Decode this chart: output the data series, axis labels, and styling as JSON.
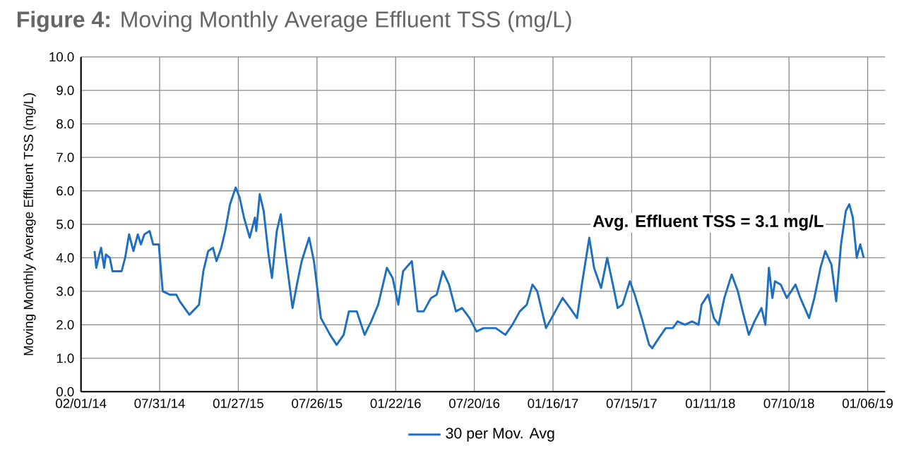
{
  "chart_data": {
    "type": "line",
    "title": "**Figure 4:** Moving Monthly Average Effluent TSS (mg/L)",
    "ylabel": "Moving Monthly Average Effluent TSS (mg/L)",
    "annotations": [
      "Avg. Effluent TSS = 3.1 mg/L"
    ],
    "xlim": [
      "2014-02-01",
      "2019-02-15"
    ],
    "ylim": [
      0,
      10
    ],
    "xticks": [
      {
        "value": "2014-02-01",
        "label": "02/01/14"
      },
      {
        "value": "2014-07-31",
        "label": "07/31/14"
      },
      {
        "value": "2015-01-27",
        "label": "01/27/15"
      },
      {
        "value": "2015-07-26",
        "label": "07/26/15"
      },
      {
        "value": "2016-01-22",
        "label": "01/22/16"
      },
      {
        "value": "2016-07-20",
        "label": "07/20/16"
      },
      {
        "value": "2017-01-16",
        "label": "01/16/17"
      },
      {
        "value": "2017-07-15",
        "label": "07/15/17"
      },
      {
        "value": "2018-01-11",
        "label": "01/11/18"
      },
      {
        "value": "2018-07-10",
        "label": "07/10/18"
      },
      {
        "value": "2019-01-06",
        "label": "01/06/19"
      }
    ],
    "yticks": [
      {
        "value": 0,
        "label": "0.0"
      },
      {
        "value": 1,
        "label": "1.0"
      },
      {
        "value": 2,
        "label": "2.0"
      },
      {
        "value": 3,
        "label": "3.0"
      },
      {
        "value": 4,
        "label": "4.0"
      },
      {
        "value": 5,
        "label": "5.0"
      },
      {
        "value": 6,
        "label": "6.0"
      },
      {
        "value": 7,
        "label": "7.0"
      },
      {
        "value": 8,
        "label": "8.0"
      },
      {
        "value": 9,
        "label": "9.0"
      },
      {
        "value": 10,
        "label": "10.0"
      }
    ],
    "grid": true,
    "legend": "bottom",
    "x": [
      "2014-03-04",
      "2014-03-08",
      "2014-03-15",
      "2014-03-19",
      "2014-03-26",
      "2014-03-30",
      "2014-04-08",
      "2014-04-14",
      "2014-04-24",
      "2014-05-05",
      "2014-05-13",
      "2014-05-22",
      "2014-06-01",
      "2014-06-11",
      "2014-06-18",
      "2014-06-26",
      "2014-07-08",
      "2014-07-16",
      "2014-07-29",
      "2014-08-07",
      "2014-08-23",
      "2014-09-07",
      "2014-09-15",
      "2014-10-07",
      "2014-10-29",
      "2014-11-08",
      "2014-11-19",
      "2014-11-30",
      "2014-12-08",
      "2014-12-19",
      "2014-12-28",
      "2015-01-08",
      "2015-01-21",
      "2015-01-30",
      "2015-02-09",
      "2015-02-22",
      "2015-03-06",
      "2015-03-09",
      "2015-03-17",
      "2015-03-26",
      "2015-04-06",
      "2015-04-14",
      "2015-04-25",
      "2015-05-04",
      "2015-05-14",
      "2015-05-31",
      "2015-06-10",
      "2015-06-21",
      "2015-07-08",
      "2015-07-19",
      "2015-08-04",
      "2015-08-25",
      "2015-09-09",
      "2015-09-25",
      "2015-10-07",
      "2015-10-20",
      "2015-10-25",
      "2015-11-12",
      "2015-11-27",
      "2015-12-13",
      "2016-01-02",
      "2016-01-15",
      "2016-01-28",
      "2016-02-08",
      "2016-02-28",
      "2016-03-12",
      "2016-03-26",
      "2016-04-12",
      "2016-04-25",
      "2016-05-09",
      "2016-05-23",
      "2016-06-08",
      "2016-06-22",
      "2016-07-09",
      "2016-07-25",
      "2016-08-10",
      "2016-09-07",
      "2016-09-29",
      "2016-10-15",
      "2016-11-01",
      "2016-11-17",
      "2016-11-30",
      "2016-12-11",
      "2016-12-31",
      "2017-01-17",
      "2017-02-07",
      "2017-02-24",
      "2017-03-12",
      "2017-03-23",
      "2017-04-09",
      "2017-04-20",
      "2017-05-06",
      "2017-05-20",
      "2017-06-02",
      "2017-06-13",
      "2017-06-24",
      "2017-07-11",
      "2017-07-22",
      "2017-08-07",
      "2017-08-24",
      "2017-08-31",
      "2017-09-15",
      "2017-10-01",
      "2017-10-17",
      "2017-10-28",
      "2017-11-14",
      "2017-11-30",
      "2017-12-15",
      "2017-12-22",
      "2018-01-06",
      "2018-01-19",
      "2018-01-30",
      "2018-02-12",
      "2018-03-01",
      "2018-03-15",
      "2018-03-26",
      "2018-04-09",
      "2018-04-22",
      "2018-05-08",
      "2018-05-17",
      "2018-05-25",
      "2018-06-02",
      "2018-06-08",
      "2018-06-21",
      "2018-07-05",
      "2018-07-25",
      "2018-08-05",
      "2018-08-25",
      "2018-09-06",
      "2018-09-20",
      "2018-10-01",
      "2018-10-15",
      "2018-10-26",
      "2018-11-06",
      "2018-11-17",
      "2018-11-25",
      "2018-12-03",
      "2018-12-12",
      "2018-12-20",
      "2018-12-28"
    ],
    "series": [
      {
        "name": "30 per Mov. Avg",
        "color": "#1f6fc0",
        "values": [
          4.2,
          3.7,
          4.1,
          4.3,
          3.7,
          4.1,
          4.0,
          3.6,
          3.6,
          3.6,
          4.0,
          4.7,
          4.2,
          4.7,
          4.4,
          4.7,
          4.8,
          4.4,
          4.4,
          3.0,
          2.9,
          2.9,
          2.7,
          2.3,
          2.6,
          3.6,
          4.2,
          4.3,
          3.9,
          4.3,
          4.8,
          5.6,
          6.1,
          5.8,
          5.2,
          4.6,
          5.2,
          4.8,
          5.9,
          5.4,
          4.1,
          3.4,
          4.8,
          5.3,
          4.2,
          2.5,
          3.2,
          3.9,
          4.6,
          3.9,
          2.2,
          1.7,
          1.4,
          1.7,
          2.4,
          2.4,
          2.4,
          1.7,
          2.1,
          2.6,
          3.7,
          3.4,
          2.6,
          3.6,
          3.9,
          2.4,
          2.4,
          2.8,
          2.9,
          3.6,
          3.2,
          2.4,
          2.5,
          2.2,
          1.8,
          1.9,
          1.9,
          1.7,
          2.0,
          2.4,
          2.6,
          3.2,
          3.0,
          1.9,
          2.3,
          2.8,
          2.5,
          2.2,
          3.2,
          4.6,
          3.7,
          3.1,
          4.0,
          3.2,
          2.5,
          2.6,
          3.3,
          2.9,
          2.2,
          1.4,
          1.3,
          1.6,
          1.9,
          1.9,
          2.1,
          2.0,
          2.1,
          2.0,
          2.6,
          2.9,
          2.2,
          2.0,
          2.8,
          3.5,
          3.0,
          2.4,
          1.7,
          2.1,
          2.5,
          2.0,
          3.7,
          2.8,
          3.3,
          3.2,
          2.8,
          3.2,
          2.8,
          2.2,
          2.8,
          3.7,
          4.2,
          3.8,
          2.7,
          4.4,
          5.4,
          5.6,
          5.2,
          4.0,
          4.4,
          4.0
        ]
      }
    ]
  }
}
